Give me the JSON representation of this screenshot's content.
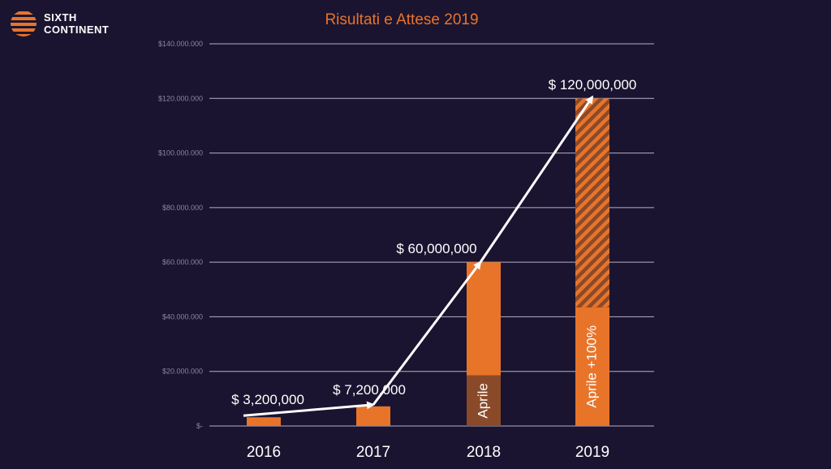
{
  "header": {
    "logo_line1": "SIXTH",
    "logo_line2": "CONTINENT",
    "logo_icon": "striped-circle-icon"
  },
  "chart_data": {
    "type": "bar",
    "title": "Risultati e Attese 2019",
    "xlabel": "",
    "ylabel": "",
    "ylim": [
      0,
      140000000
    ],
    "grid": true,
    "y_ticks": [
      {
        "value": 0,
        "label": "$-"
      },
      {
        "value": 20000000,
        "label": "$20.000.000"
      },
      {
        "value": 40000000,
        "label": "$40.000.000"
      },
      {
        "value": 60000000,
        "label": "$60.000.000"
      },
      {
        "value": 80000000,
        "label": "$80.000.000"
      },
      {
        "value": 100000000,
        "label": "$100.000.000"
      },
      {
        "value": 120000000,
        "label": "$120.000.000"
      },
      {
        "value": 140000000,
        "label": "$140.000.000"
      }
    ],
    "categories": [
      "2016",
      "2017",
      "2018",
      "2019"
    ],
    "values": [
      3200000,
      7200000,
      60000000,
      120000000
    ],
    "data_labels": [
      "$ 3,200,000",
      "$ 7,200,000",
      "$ 60,000,000",
      "$ 120,000,000"
    ],
    "segments": [
      {
        "category": "2018",
        "from": 0,
        "to": 18500000,
        "label": "Aprile",
        "style": "dark"
      },
      {
        "category": "2019",
        "from": 0,
        "to": 43500000,
        "label": "Aprile +100%",
        "style": "solid"
      },
      {
        "category": "2019",
        "from": 43500000,
        "to": 120000000,
        "label": "",
        "style": "hatched"
      }
    ],
    "colors": {
      "bar": "#e8742a",
      "bar_dark": "#8a4a2a",
      "hatch_bg": "#8a4a2a",
      "grid": "#d0cde0",
      "arrow": "#ffffff",
      "background": "#1a1430"
    }
  }
}
